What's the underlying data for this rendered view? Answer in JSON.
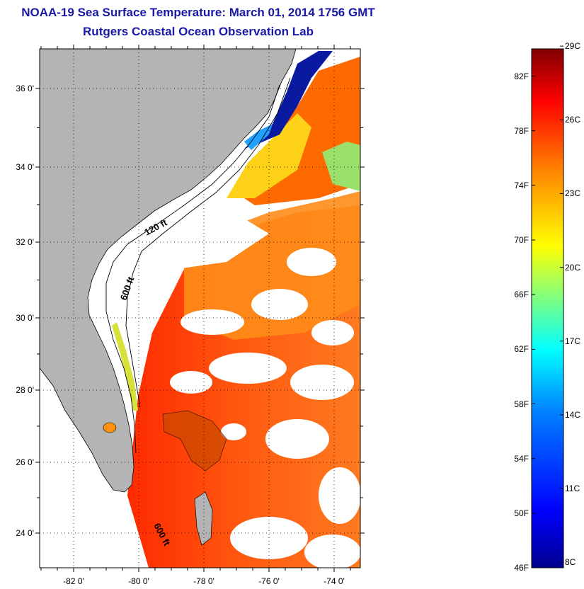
{
  "title": "NOAA-19 Sea Surface Temperature:  March 01, 2014 1756 GMT",
  "subtitle": "Rutgers Coastal Ocean Observation Lab",
  "lat_ticks": [
    "24 0'",
    "26 0'",
    "28 0'",
    "30 0'",
    "32 0'",
    "34 0'",
    "36 0'"
  ],
  "lon_ticks": [
    "-82 0'",
    "-80 0'",
    "-78 0'",
    "-76 0'",
    "-74 0'"
  ],
  "isobaths": [
    "120 ft",
    "600 ft",
    "600 ft"
  ],
  "colorbar": {
    "fahrenheit": [
      "82F",
      "78F",
      "74F",
      "70F",
      "66F",
      "62F",
      "58F",
      "54F",
      "50F",
      "46F"
    ],
    "celsius": [
      "29C",
      "26C",
      "23C",
      "20C",
      "17C",
      "14C",
      "11C",
      "8C"
    ],
    "range_f": [
      46,
      84
    ],
    "colors": [
      "#00008f",
      "#0000ff",
      "#0080ff",
      "#00ffff",
      "#80ff80",
      "#ffff00",
      "#ff8000",
      "#ff0000",
      "#800000"
    ]
  },
  "colors": {
    "title": "#1a1aa6",
    "land": "#b4b4b4",
    "cloud": "#ffffff"
  }
}
